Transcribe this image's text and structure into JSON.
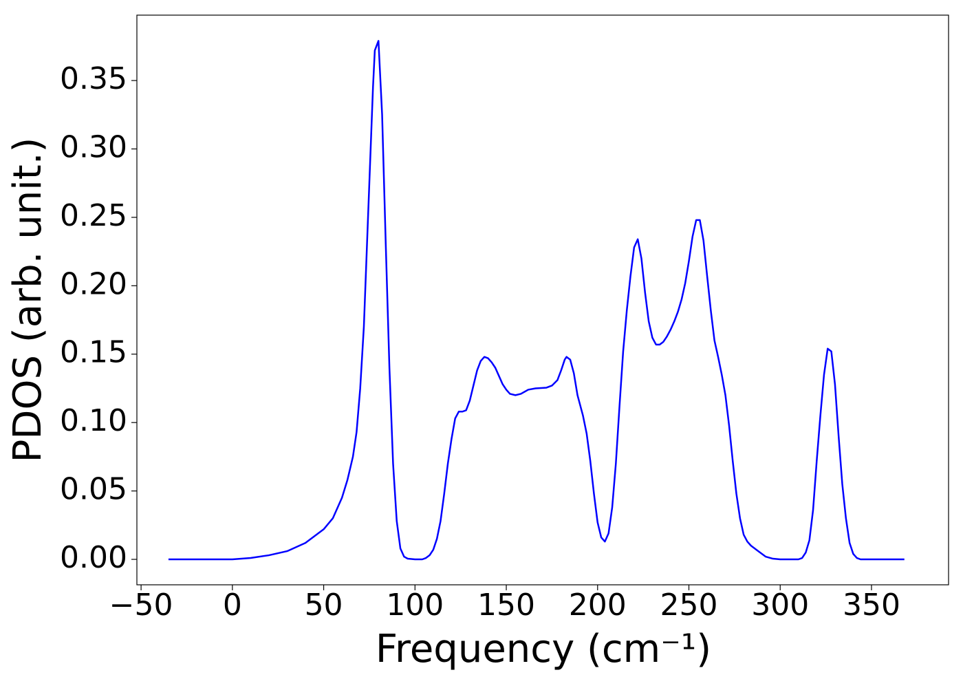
{
  "chart_data": {
    "type": "line",
    "xlabel": "Frequency (cm⁻¹)",
    "ylabel": "PDOS (arb. unit.)",
    "xlim": [
      -52.3,
      392.2
    ],
    "ylim": [
      -0.0186,
      0.3978
    ],
    "xticks": [
      {
        "value": -50,
        "label": "−50"
      },
      0,
      50,
      100,
      150,
      200,
      250,
      300,
      350
    ],
    "yticks": [
      {
        "value": 0,
        "label": "0.00"
      },
      {
        "value": 0.05,
        "label": "0.05"
      },
      {
        "value": 0.1,
        "label": "0.10"
      },
      {
        "value": 0.15,
        "label": "0.15"
      },
      {
        "value": 0.2,
        "label": "0.20"
      },
      {
        "value": 0.25,
        "label": "0.25"
      },
      {
        "value": 0.3,
        "label": "0.30"
      },
      {
        "value": 0.35,
        "label": "0.35"
      }
    ],
    "grid": false,
    "x": [
      -35,
      0,
      10,
      20,
      30,
      40,
      50,
      55,
      60,
      63,
      66,
      68,
      70,
      72,
      74,
      76,
      77,
      78,
      80,
      82,
      84,
      86,
      88,
      90,
      92,
      94,
      96,
      100,
      104,
      106,
      108,
      110,
      112,
      114,
      116,
      118,
      120,
      122,
      124,
      126,
      128,
      130,
      132,
      134,
      136,
      138,
      140,
      142,
      144,
      146,
      148,
      150,
      152,
      155,
      158,
      162,
      166,
      172,
      175,
      178,
      180,
      182,
      183,
      185,
      187,
      189,
      192,
      194,
      196,
      198,
      200,
      202,
      204,
      206,
      208,
      210,
      212,
      214,
      216,
      218,
      220,
      222,
      224,
      226,
      228,
      230,
      232,
      234,
      236,
      238,
      240,
      242,
      244,
      246,
      248,
      250,
      252,
      254,
      256,
      258,
      260,
      262,
      264,
      266,
      268,
      270,
      272,
      274,
      276,
      278,
      280,
      282,
      284,
      288,
      292,
      296,
      300,
      310,
      312,
      314,
      316,
      318,
      320,
      322,
      324,
      326,
      328,
      330,
      332,
      334,
      336,
      338,
      340,
      342,
      344,
      368
    ],
    "series": [
      {
        "name": "PDOS",
        "color": "#0000ff",
        "values": [
          0,
          0,
          0.001,
          0.003,
          0.006,
          0.012,
          0.022,
          0.03,
          0.045,
          0.058,
          0.075,
          0.093,
          0.125,
          0.17,
          0.24,
          0.31,
          0.345,
          0.372,
          0.379,
          0.325,
          0.23,
          0.14,
          0.07,
          0.028,
          0.008,
          0.002,
          0.0005,
          0,
          0,
          0.001,
          0.003,
          0.007,
          0.015,
          0.028,
          0.048,
          0.07,
          0.088,
          0.103,
          0.108,
          0.108,
          0.109,
          0.116,
          0.127,
          0.138,
          0.145,
          0.148,
          0.147,
          0.144,
          0.14,
          0.134,
          0.128,
          0.124,
          0.121,
          0.12,
          0.121,
          0.124,
          0.125,
          0.1255,
          0.127,
          0.131,
          0.138,
          0.146,
          0.148,
          0.146,
          0.136,
          0.12,
          0.105,
          0.092,
          0.072,
          0.048,
          0.027,
          0.016,
          0.013,
          0.019,
          0.038,
          0.07,
          0.112,
          0.152,
          0.182,
          0.207,
          0.228,
          0.234,
          0.22,
          0.195,
          0.174,
          0.162,
          0.157,
          0.157,
          0.159,
          0.163,
          0.168,
          0.174,
          0.181,
          0.19,
          0.202,
          0.218,
          0.236,
          0.248,
          0.248,
          0.233,
          0.207,
          0.182,
          0.16,
          0.148,
          0.135,
          0.12,
          0.098,
          0.072,
          0.048,
          0.03,
          0.018,
          0.013,
          0.01,
          0.006,
          0.002,
          0.0005,
          0,
          0,
          0.001,
          0.005,
          0.014,
          0.036,
          0.072,
          0.105,
          0.135,
          0.154,
          0.152,
          0.128,
          0.09,
          0.055,
          0.03,
          0.012,
          0.004,
          0.001,
          0,
          0
        ]
      }
    ]
  }
}
